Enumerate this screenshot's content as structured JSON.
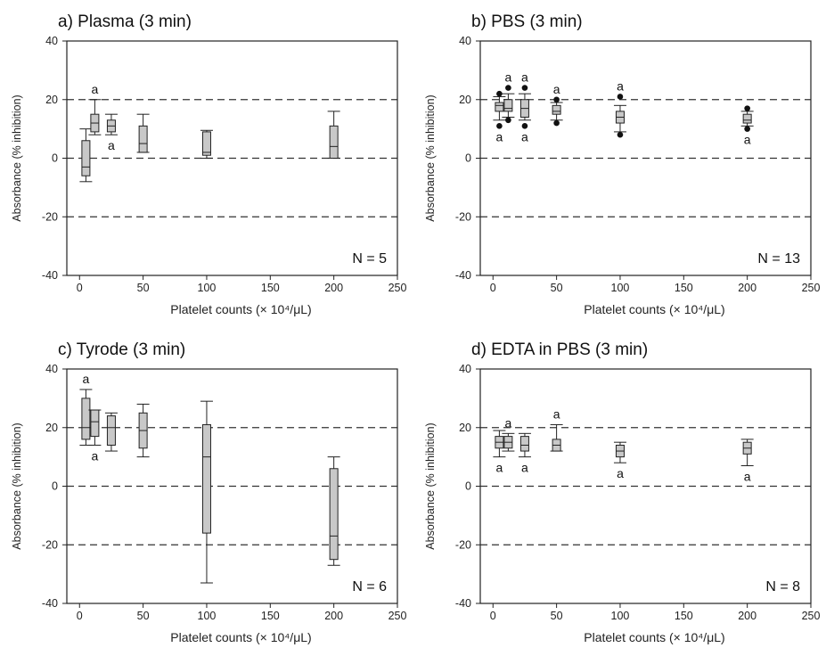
{
  "chart_data": [
    {
      "type": "box",
      "title": "a) Plasma (3 min)",
      "xlabel": "Platelet counts (× 10⁴/μL)",
      "ylabel": "Absorbance (% inhibition)",
      "xlim": [
        -10,
        250
      ],
      "ylim": [
        -40,
        40
      ],
      "xticks": [
        "0",
        "50",
        "100",
        "150",
        "200",
        "250"
      ],
      "yticks": [
        "-40",
        "-20",
        "0",
        "20",
        "40"
      ],
      "reference_lines": [
        -20,
        0,
        20
      ],
      "n_label": "N = 5",
      "boxes": [
        {
          "x": 5,
          "wl": -8,
          "q1": -6,
          "med": -3,
          "q3": 6,
          "wh": 10
        },
        {
          "x": 12,
          "wl": 8,
          "q1": 9,
          "med": 12,
          "q3": 15,
          "wh": 20,
          "sig_above": "a"
        },
        {
          "x": 25,
          "wl": 8,
          "q1": 9,
          "med": 11,
          "q3": 13,
          "wh": 15,
          "sig_below": "a"
        },
        {
          "x": 50,
          "wl": 2,
          "q1": 2,
          "med": 5,
          "q3": 11,
          "wh": 15
        },
        {
          "x": 100,
          "wl": 0,
          "q1": 1,
          "med": 2,
          "q3": 9,
          "wh": 9.5
        },
        {
          "x": 200,
          "wl": 0,
          "q1": 0,
          "med": 4,
          "q3": 11,
          "wh": 16
        }
      ]
    },
    {
      "type": "box",
      "title": "b) PBS (3 min)",
      "xlabel": "Platelet counts (× 10⁴/μL)",
      "ylabel": "Absorbance (% inhibition)",
      "xlim": [
        -10,
        250
      ],
      "ylim": [
        -40,
        40
      ],
      "xticks": [
        "0",
        "50",
        "100",
        "150",
        "200",
        "250"
      ],
      "yticks": [
        "-40",
        "-20",
        "0",
        "20",
        "40"
      ],
      "reference_lines": [
        -20,
        0,
        20
      ],
      "n_label": "N = 13",
      "boxes": [
        {
          "x": 5,
          "wl": 13,
          "q1": 16,
          "med": 18,
          "q3": 19,
          "wh": 21,
          "outliers": [
            11,
            22
          ],
          "sig_below": "a"
        },
        {
          "x": 12,
          "wl": 14,
          "q1": 16,
          "med": 17,
          "q3": 20,
          "wh": 22,
          "outliers": [
            13,
            24
          ],
          "sig_above": "a"
        },
        {
          "x": 25,
          "wl": 13,
          "q1": 14,
          "med": 17,
          "q3": 20,
          "wh": 22,
          "outliers": [
            11,
            24
          ],
          "sig_above": "a",
          "sig_below": "a"
        },
        {
          "x": 50,
          "wl": 13,
          "q1": 15,
          "med": 16,
          "q3": 18,
          "wh": 19,
          "outliers": [
            12,
            20
          ],
          "sig_above": "a"
        },
        {
          "x": 100,
          "wl": 9,
          "q1": 12,
          "med": 14,
          "q3": 16,
          "wh": 18,
          "outliers": [
            8,
            21
          ],
          "sig_above": "a"
        },
        {
          "x": 200,
          "wl": 11,
          "q1": 12,
          "med": 13,
          "q3": 15,
          "wh": 16,
          "outliers": [
            10,
            17
          ],
          "sig_below": "a"
        }
      ]
    },
    {
      "type": "box",
      "title": "c) Tyrode (3 min)",
      "xlabel": "Platelet counts (× 10⁴/μL)",
      "ylabel": "Absorbance (% inhibition)",
      "xlim": [
        -10,
        250
      ],
      "ylim": [
        -40,
        40
      ],
      "xticks": [
        "0",
        "50",
        "100",
        "150",
        "200",
        "250"
      ],
      "yticks": [
        "-40",
        "-20",
        "0",
        "20",
        "40"
      ],
      "reference_lines": [
        -20,
        0,
        20
      ],
      "n_label": "N = 6",
      "boxes": [
        {
          "x": 5,
          "wl": 14,
          "q1": 16,
          "med": 20,
          "q3": 30,
          "wh": 33,
          "sig_above": "a"
        },
        {
          "x": 12,
          "wl": 14,
          "q1": 17,
          "med": 22,
          "q3": 26,
          "wh": 26,
          "sig_below": "a"
        },
        {
          "x": 25,
          "wl": 12,
          "q1": 14,
          "med": 20,
          "q3": 24,
          "wh": 25
        },
        {
          "x": 50,
          "wl": 10,
          "q1": 13,
          "med": 19,
          "q3": 25,
          "wh": 28
        },
        {
          "x": 100,
          "wl": -33,
          "q1": -16,
          "med": 10,
          "q3": 21,
          "wh": 29
        },
        {
          "x": 200,
          "wl": -27,
          "q1": -25,
          "med": -17,
          "q3": 6,
          "wh": 10
        }
      ]
    },
    {
      "type": "box",
      "title": "d) EDTA in PBS (3 min)",
      "xlabel": "Platelet counts (× 10⁴/μL)",
      "ylabel": "Absorbance (% inhibition)",
      "xlim": [
        -10,
        250
      ],
      "ylim": [
        -40,
        40
      ],
      "xticks": [
        "0",
        "50",
        "100",
        "150",
        "200",
        "250"
      ],
      "yticks": [
        "-40",
        "-20",
        "0",
        "20",
        "40"
      ],
      "reference_lines": [
        -20,
        0,
        20
      ],
      "n_label": "N = 8",
      "boxes": [
        {
          "x": 5,
          "wl": 10,
          "q1": 13,
          "med": 15,
          "q3": 17,
          "wh": 19,
          "sig_below": "a"
        },
        {
          "x": 12,
          "wl": 12,
          "q1": 13,
          "med": 15,
          "q3": 17,
          "wh": 18,
          "sig_above": "a"
        },
        {
          "x": 25,
          "wl": 10,
          "q1": 12,
          "med": 14,
          "q3": 17,
          "wh": 18,
          "sig_below": "a"
        },
        {
          "x": 50,
          "wl": 12,
          "q1": 12,
          "med": 14,
          "q3": 16,
          "wh": 21,
          "sig_above": "a"
        },
        {
          "x": 100,
          "wl": 8,
          "q1": 10,
          "med": 12,
          "q3": 14,
          "wh": 15,
          "sig_below": "a"
        },
        {
          "x": 200,
          "wl": 7,
          "q1": 11,
          "med": 13,
          "q3": 15,
          "wh": 16,
          "sig_below": "a"
        }
      ]
    }
  ]
}
